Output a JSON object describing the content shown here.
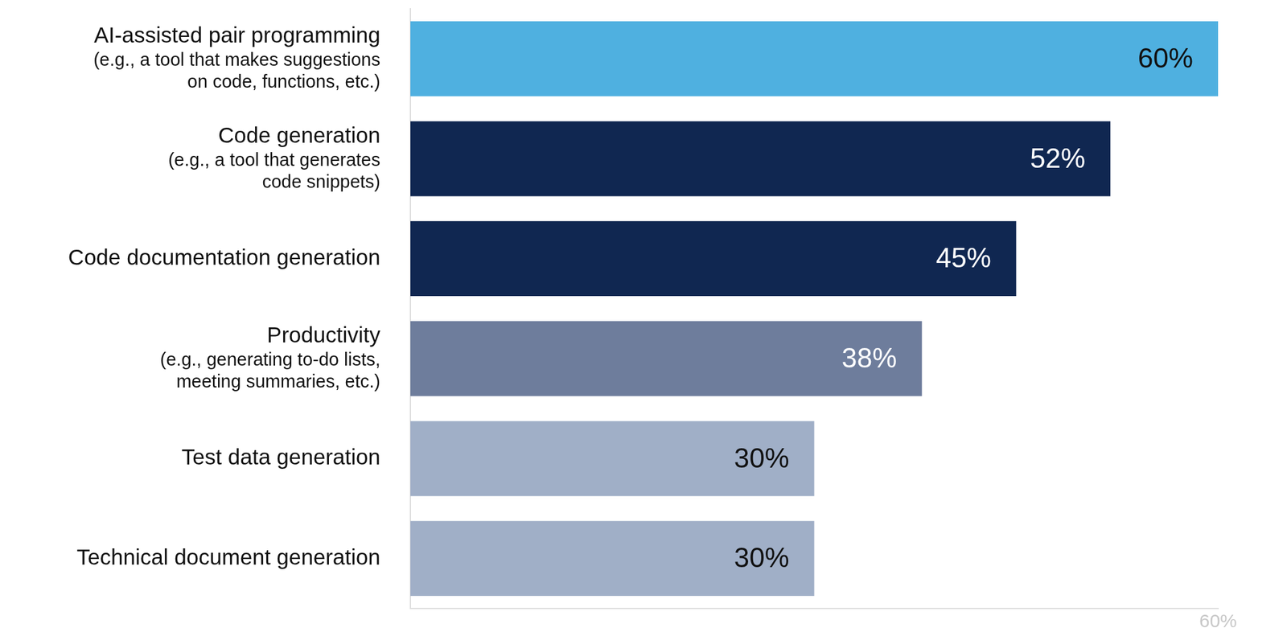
{
  "chart_data": {
    "type": "bar",
    "orientation": "horizontal",
    "categories": [
      [
        "AI-assisted pair programming",
        "(e.g., a tool that makes suggestions",
        "on code, functions, etc.)"
      ],
      [
        "Code generation",
        "(e.g., a tool that generates",
        "code snippets)"
      ],
      [
        "Code documentation generation"
      ],
      [
        "Productivity",
        "(e.g., generating to-do lists,",
        "meeting summaries, etc.)"
      ],
      [
        "Test data generation"
      ],
      [
        "Technical document generation"
      ]
    ],
    "values": [
      60,
      52,
      45,
      38,
      30,
      30
    ],
    "value_labels": [
      "60%",
      "52%",
      "45%",
      "38%",
      "30%",
      "30%"
    ],
    "colors": [
      "#4fb0e0",
      "#102751",
      "#102751",
      "#6e7d9c",
      "#a0afc7",
      "#a0afc7"
    ],
    "xlim": [
      0,
      60
    ],
    "xticks": [
      {
        "value": 60,
        "label": "60%"
      }
    ],
    "grid": false,
    "data_labels": true
  }
}
